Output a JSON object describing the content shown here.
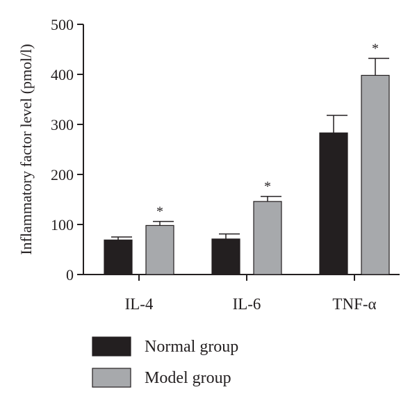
{
  "chart_data": {
    "type": "bar",
    "categories": [
      "IL-4",
      "IL-6",
      "TNF-α"
    ],
    "series": [
      {
        "name": "Normal group",
        "values": [
          69,
          71,
          283
        ],
        "errors": [
          6,
          10,
          35
        ],
        "significance": [
          "",
          "",
          ""
        ]
      },
      {
        "name": "Model group",
        "values": [
          98,
          146,
          398
        ],
        "errors": [
          8,
          10,
          34
        ],
        "significance": [
          "*",
          "*",
          "*"
        ]
      }
    ],
    "colors": {
      "Normal group": "#231f20",
      "Model group": "#a7a9ac"
    },
    "xlabel": "",
    "ylabel": "Inflammatory factor level (pmol/l)",
    "ylim": [
      0,
      500
    ],
    "yticks": [
      0,
      100,
      200,
      300,
      400,
      500
    ],
    "grid": false,
    "legend_position": "bottom"
  }
}
